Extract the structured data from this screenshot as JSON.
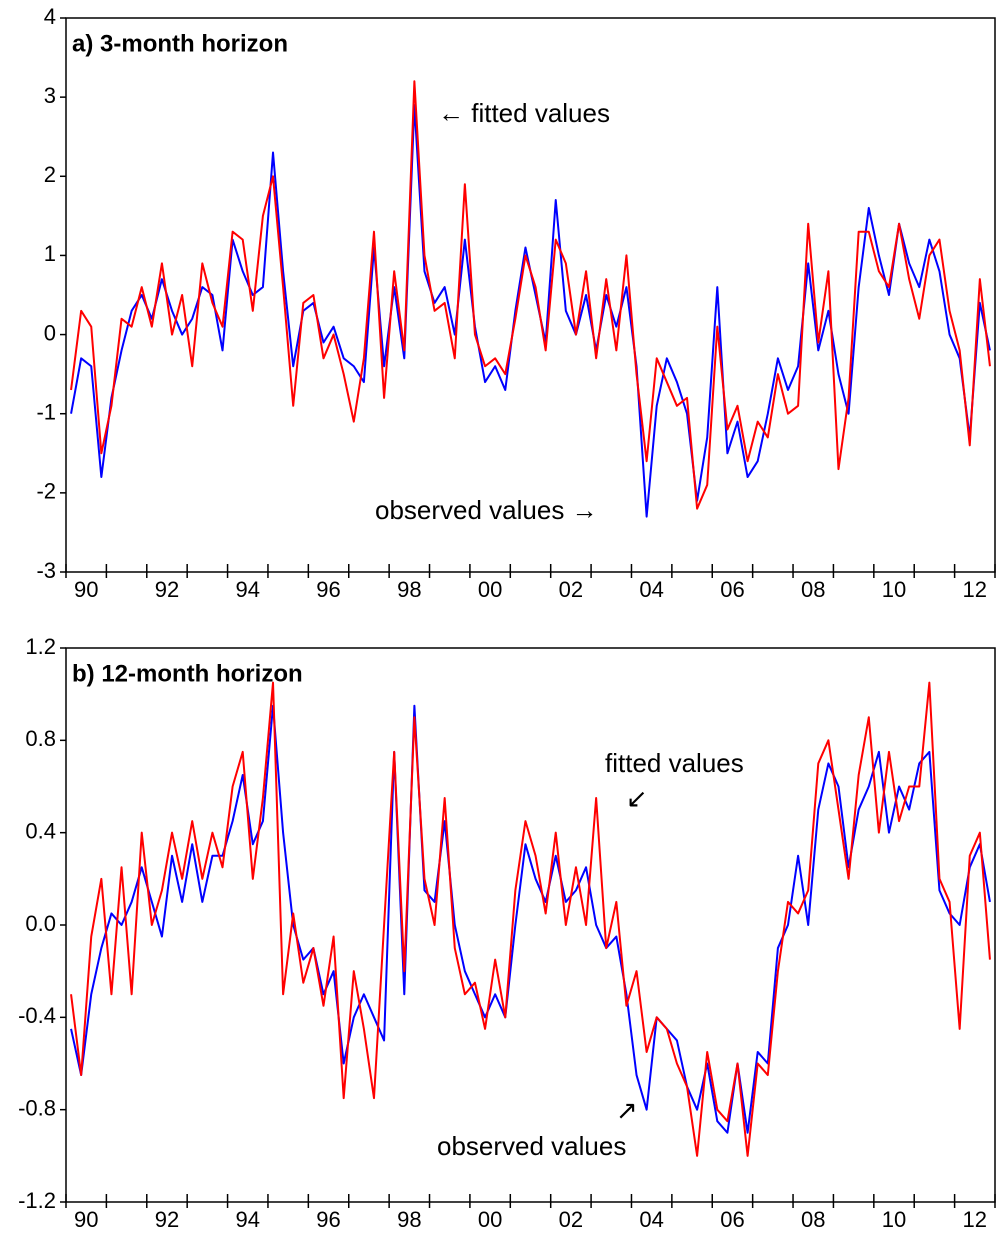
{
  "chart_data": [
    {
      "type": "line",
      "title": "a) 3-month horizon",
      "annotations": [
        "← fitted values",
        "observed values →"
      ],
      "x": [
        1990.125,
        1990.375,
        1990.625,
        1990.875,
        1991.125,
        1991.375,
        1991.625,
        1991.875,
        1992.125,
        1992.375,
        1992.625,
        1992.875,
        1993.125,
        1993.375,
        1993.625,
        1993.875,
        1994.125,
        1994.375,
        1994.625,
        1994.875,
        1995.125,
        1995.375,
        1995.625,
        1995.875,
        1996.125,
        1996.375,
        1996.625,
        1996.875,
        1997.125,
        1997.375,
        1997.625,
        1997.875,
        1998.125,
        1998.375,
        1998.625,
        1998.875,
        1999.125,
        1999.375,
        1999.625,
        1999.875,
        2000.125,
        2000.375,
        2000.625,
        2000.875,
        2001.125,
        2001.375,
        2001.625,
        2001.875,
        2002.125,
        2002.375,
        2002.625,
        2002.875,
        2003.125,
        2003.375,
        2003.625,
        2003.875,
        2004.125,
        2004.375,
        2004.625,
        2004.875,
        2005.125,
        2005.375,
        2005.625,
        2005.875,
        2006.125,
        2006.375,
        2006.625,
        2006.875,
        2007.125,
        2007.375,
        2007.625,
        2007.875,
        2008.125,
        2008.375,
        2008.625,
        2008.875,
        2009.125,
        2009.375,
        2009.625,
        2009.875,
        2010.125,
        2010.375,
        2010.625,
        2010.875,
        2011.125,
        2011.375,
        2011.625,
        2011.875,
        2012.125,
        2012.375,
        2012.625,
        2012.875
      ],
      "series": [
        {
          "color": "#0000ff",
          "values": [
            -1.0,
            -0.3,
            -0.4,
            -1.8,
            -0.8,
            -0.2,
            0.3,
            0.5,
            0.2,
            0.7,
            0.3,
            0.0,
            0.2,
            0.6,
            0.5,
            -0.2,
            1.2,
            0.8,
            0.5,
            0.6,
            2.3,
            0.8,
            -0.4,
            0.3,
            0.4,
            -0.1,
            0.1,
            -0.3,
            -0.4,
            -0.6,
            1.1,
            -0.4,
            0.6,
            -0.3,
            2.9,
            0.8,
            0.4,
            0.6,
            0.0,
            1.2,
            0.1,
            -0.6,
            -0.4,
            -0.7,
            0.3,
            1.1,
            0.5,
            -0.1,
            1.7,
            0.3,
            0.0,
            0.5,
            -0.2,
            0.5,
            0.1,
            0.6,
            -0.4,
            -2.3,
            -0.9,
            -0.3,
            -0.6,
            -1.0,
            -2.1,
            -1.3,
            0.6,
            -1.5,
            -1.1,
            -1.8,
            -1.6,
            -1.0,
            -0.3,
            -0.7,
            -0.4,
            0.9,
            -0.2,
            0.3,
            -0.5,
            -1.0,
            0.6,
            1.6,
            1.0,
            0.5,
            1.4,
            0.9,
            0.6,
            1.2,
            0.8,
            0.0,
            -0.3,
            -1.3,
            0.4,
            -0.2
          ]
        },
        {
          "color": "#ff0000",
          "values": [
            -0.7,
            0.3,
            0.1,
            -1.5,
            -0.9,
            0.2,
            0.1,
            0.6,
            0.1,
            0.9,
            0.0,
            0.5,
            -0.4,
            0.9,
            0.4,
            0.1,
            1.3,
            1.2,
            0.3,
            1.5,
            2.0,
            0.6,
            -0.9,
            0.4,
            0.5,
            -0.3,
            0.0,
            -0.5,
            -1.1,
            -0.3,
            1.3,
            -0.8,
            0.8,
            -0.2,
            3.2,
            1.0,
            0.3,
            0.4,
            -0.3,
            1.9,
            0.0,
            -0.4,
            -0.3,
            -0.5,
            0.2,
            1.0,
            0.6,
            -0.2,
            1.2,
            0.9,
            0.0,
            0.8,
            -0.3,
            0.7,
            -0.2,
            1.0,
            -0.5,
            -1.6,
            -0.3,
            -0.6,
            -0.9,
            -0.8,
            -2.2,
            -1.9,
            0.1,
            -1.2,
            -0.9,
            -1.6,
            -1.1,
            -1.3,
            -0.5,
            -1.0,
            -0.9,
            1.4,
            -0.1,
            0.8,
            -1.7,
            -0.8,
            1.3,
            1.3,
            0.8,
            0.6,
            1.4,
            0.7,
            0.2,
            1.0,
            1.2,
            0.3,
            -0.2,
            -1.4,
            0.7,
            -0.4
          ]
        }
      ],
      "xlim": [
        1990,
        2013
      ],
      "ylim": [
        -3,
        4
      ],
      "yticks": [
        -3,
        -2,
        -1,
        0,
        1,
        2,
        3,
        4
      ],
      "xticks": [
        {
          "value": 1990.5,
          "label": "90"
        },
        {
          "value": 1992.5,
          "label": "92"
        },
        {
          "value": 1994.5,
          "label": "94"
        },
        {
          "value": 1996.5,
          "label": "96"
        },
        {
          "value": 1998.5,
          "label": "98"
        },
        {
          "value": 2000.5,
          "label": "00"
        },
        {
          "value": 2002.5,
          "label": "02"
        },
        {
          "value": 2004.5,
          "label": "04"
        },
        {
          "value": 2006.5,
          "label": "06"
        },
        {
          "value": 2008.5,
          "label": "08"
        },
        {
          "value": 2010.5,
          "label": "10"
        },
        {
          "value": 2012.5,
          "label": "12"
        }
      ]
    },
    {
      "type": "line",
      "title": "b) 12-month horizon",
      "annotations": [
        "fitted values",
        "↙",
        "↗",
        "observed values"
      ],
      "x": [
        1990.125,
        1990.375,
        1990.625,
        1990.875,
        1991.125,
        1991.375,
        1991.625,
        1991.875,
        1992.125,
        1992.375,
        1992.625,
        1992.875,
        1993.125,
        1993.375,
        1993.625,
        1993.875,
        1994.125,
        1994.375,
        1994.625,
        1994.875,
        1995.125,
        1995.375,
        1995.625,
        1995.875,
        1996.125,
        1996.375,
        1996.625,
        1996.875,
        1997.125,
        1997.375,
        1997.625,
        1997.875,
        1998.125,
        1998.375,
        1998.625,
        1998.875,
        1999.125,
        1999.375,
        1999.625,
        1999.875,
        2000.125,
        2000.375,
        2000.625,
        2000.875,
        2001.125,
        2001.375,
        2001.625,
        2001.875,
        2002.125,
        2002.375,
        2002.625,
        2002.875,
        2003.125,
        2003.375,
        2003.625,
        2003.875,
        2004.125,
        2004.375,
        2004.625,
        2004.875,
        2005.125,
        2005.375,
        2005.625,
        2005.875,
        2006.125,
        2006.375,
        2006.625,
        2006.875,
        2007.125,
        2007.375,
        2007.625,
        2007.875,
        2008.125,
        2008.375,
        2008.625,
        2008.875,
        2009.125,
        2009.375,
        2009.625,
        2009.875,
        2010.125,
        2010.375,
        2010.625,
        2010.875,
        2011.125,
        2011.375,
        2011.625,
        2011.875,
        2012.125,
        2012.375,
        2012.625,
        2012.875
      ],
      "series": [
        {
          "color": "#0000ff",
          "values": [
            -0.45,
            -0.65,
            -0.3,
            -0.1,
            0.05,
            0.0,
            0.1,
            0.25,
            0.1,
            -0.05,
            0.3,
            0.1,
            0.35,
            0.1,
            0.3,
            0.3,
            0.45,
            0.65,
            0.35,
            0.45,
            0.95,
            0.4,
            0.0,
            -0.15,
            -0.1,
            -0.3,
            -0.2,
            -0.6,
            -0.4,
            -0.3,
            -0.4,
            -0.5,
            0.75,
            -0.3,
            0.95,
            0.15,
            0.1,
            0.45,
            0.0,
            -0.2,
            -0.3,
            -0.4,
            -0.3,
            -0.4,
            0.0,
            0.35,
            0.2,
            0.1,
            0.3,
            0.1,
            0.15,
            0.25,
            0.0,
            -0.1,
            -0.05,
            -0.3,
            -0.65,
            -0.8,
            -0.4,
            -0.45,
            -0.5,
            -0.7,
            -0.8,
            -0.6,
            -0.85,
            -0.9,
            -0.6,
            -0.9,
            -0.55,
            -0.6,
            -0.1,
            0.0,
            0.3,
            0.0,
            0.5,
            0.7,
            0.6,
            0.25,
            0.5,
            0.6,
            0.75,
            0.4,
            0.6,
            0.5,
            0.7,
            0.75,
            0.15,
            0.05,
            0.0,
            0.25,
            0.35,
            0.1
          ]
        },
        {
          "color": "#ff0000",
          "values": [
            -0.3,
            -0.65,
            -0.05,
            0.2,
            -0.3,
            0.25,
            -0.3,
            0.4,
            0.0,
            0.15,
            0.4,
            0.2,
            0.45,
            0.2,
            0.4,
            0.25,
            0.6,
            0.75,
            0.2,
            0.55,
            1.05,
            -0.3,
            0.05,
            -0.25,
            -0.1,
            -0.35,
            -0.05,
            -0.75,
            -0.2,
            -0.45,
            -0.75,
            0.0,
            0.75,
            -0.2,
            0.9,
            0.2,
            0.0,
            0.55,
            -0.1,
            -0.3,
            -0.25,
            -0.45,
            -0.15,
            -0.4,
            0.15,
            0.45,
            0.3,
            0.05,
            0.4,
            0.0,
            0.25,
            0.0,
            0.55,
            -0.1,
            0.1,
            -0.35,
            -0.2,
            -0.55,
            -0.4,
            -0.45,
            -0.6,
            -0.7,
            -1.0,
            -0.55,
            -0.8,
            -0.85,
            -0.6,
            -1.0,
            -0.6,
            -0.65,
            -0.2,
            0.1,
            0.05,
            0.15,
            0.7,
            0.8,
            0.5,
            0.2,
            0.65,
            0.9,
            0.4,
            0.75,
            0.45,
            0.6,
            0.6,
            1.05,
            0.2,
            0.1,
            -0.45,
            0.3,
            0.4,
            -0.15
          ]
        }
      ],
      "xlim": [
        1990,
        2013
      ],
      "ylim": [
        -1.2,
        1.2
      ],
      "yticks": [
        -1.2,
        -0.8,
        -0.4,
        {
          "value": 0,
          "label": "0.0"
        },
        0.4,
        0.8,
        1.2
      ],
      "xticks": [
        {
          "value": 1990.5,
          "label": "90"
        },
        {
          "value": 1992.5,
          "label": "92"
        },
        {
          "value": 1994.5,
          "label": "94"
        },
        {
          "value": 1996.5,
          "label": "96"
        },
        {
          "value": 1998.5,
          "label": "98"
        },
        {
          "value": 2000.5,
          "label": "00"
        },
        {
          "value": 2002.5,
          "label": "02"
        },
        {
          "value": 2004.5,
          "label": "04"
        },
        {
          "value": 2006.5,
          "label": "06"
        },
        {
          "value": 2008.5,
          "label": "08"
        },
        {
          "value": 2010.5,
          "label": "10"
        },
        {
          "value": 2012.5,
          "label": "12"
        }
      ]
    }
  ]
}
